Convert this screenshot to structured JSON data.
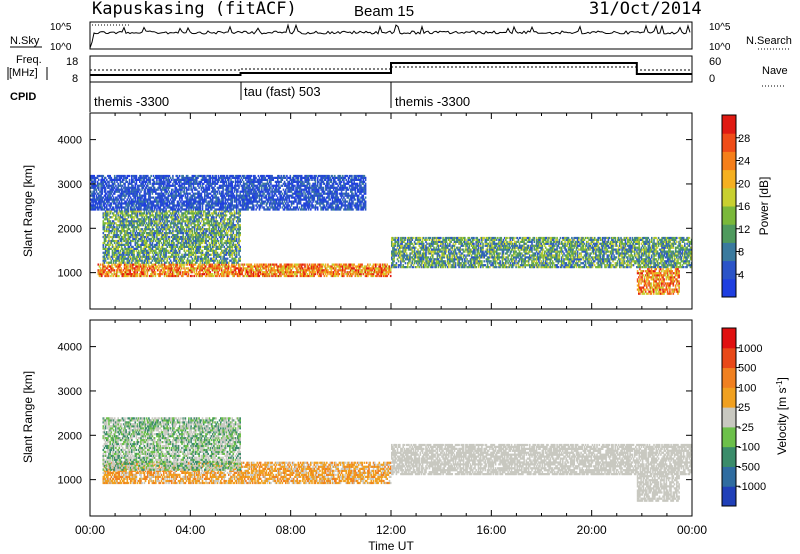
{
  "header": {
    "station": "Kapuskasing (fitACF)",
    "beam": "Beam 15",
    "date": "31/Oct/2014"
  },
  "panels": {
    "nsky": {
      "left_label": "N.Sky",
      "right_label": "N.Search",
      "left_ticks": [
        "10^5",
        "10^0"
      ],
      "right_ticks": [
        "10^5",
        "10^0"
      ]
    },
    "freq": {
      "left_label_1": "Freq.",
      "left_label_2": "[MHz]",
      "left_ticks": [
        "18",
        "8"
      ],
      "right_label": "Nave",
      "right_ticks": [
        "60",
        "0"
      ]
    },
    "cpid": {
      "label": "CPID",
      "segments": [
        {
          "start": 0,
          "end": 6,
          "name": "themis -3300"
        },
        {
          "start": 6,
          "end": 12,
          "name": "tau (fast) 503"
        },
        {
          "start": 12,
          "end": 24,
          "name": "themis -3300"
        }
      ]
    }
  },
  "chart_data": [
    {
      "type": "heatmap",
      "title": "",
      "xlabel": "Time UT",
      "ylabel": "Slant Range [km]",
      "x_ticks": [
        "00:00",
        "04:00",
        "08:00",
        "12:00",
        "16:00",
        "20:00",
        "00:00"
      ],
      "x_range_hours": [
        0,
        24
      ],
      "y_ticks": [
        1000,
        2000,
        3000,
        4000
      ],
      "ylim": [
        180,
        4600
      ],
      "colorbar": {
        "label": "Power [dB]",
        "ticks": [
          4,
          8,
          12,
          16,
          20,
          24,
          28
        ],
        "colors": [
          "#1f3fe0",
          "#2b54c8",
          "#3a7a9e",
          "#4f9a5e",
          "#7ab83a",
          "#c8d030",
          "#f5b020",
          "#f57f1a",
          "#ef4c18",
          "#e01a12"
        ]
      },
      "bands": [
        {
          "t0": 0.3,
          "t1": 12.0,
          "r0": 900,
          "r1": 1200,
          "level": "high"
        },
        {
          "t0": 12.0,
          "t1": 24.0,
          "r0": 1100,
          "r1": 1800,
          "level": "mid"
        },
        {
          "t0": 0.5,
          "t1": 6.0,
          "r0": 1200,
          "r1": 2400,
          "level": "mid"
        },
        {
          "t0": 0.0,
          "t1": 11.0,
          "r0": 2400,
          "r1": 3200,
          "level": "low"
        },
        {
          "t0": 21.8,
          "t1": 23.5,
          "r0": 500,
          "r1": 1100,
          "level": "high"
        }
      ]
    },
    {
      "type": "heatmap",
      "title": "",
      "xlabel": "Time UT",
      "ylabel": "Slant Range [km]",
      "x_ticks": [
        "00:00",
        "04:00",
        "08:00",
        "12:00",
        "16:00",
        "20:00",
        "00:00"
      ],
      "x_range_hours": [
        0,
        24
      ],
      "y_ticks": [
        1000,
        2000,
        3000,
        4000
      ],
      "ylim": [
        180,
        4600
      ],
      "colorbar": {
        "label": "Velocity [m s^-1]",
        "ticks": [
          1000,
          500,
          100,
          25,
          -25,
          -100,
          -500,
          -1000
        ],
        "colors": [
          "#2040b8",
          "#2f6ca0",
          "#3a8c6a",
          "#6cc04a",
          "#c8c8c0",
          "#f0a020",
          "#f08020",
          "#e84818",
          "#e01010"
        ]
      },
      "bands": [
        {
          "t0": 0.5,
          "t1": 12.0,
          "r0": 900,
          "r1": 1400,
          "level": "negative"
        },
        {
          "t0": 12.0,
          "t1": 24.0,
          "r0": 1100,
          "r1": 1800,
          "level": "ground"
        },
        {
          "t0": 0.5,
          "t1": 6.0,
          "r0": 1200,
          "r1": 2400,
          "level": "positive"
        },
        {
          "t0": 21.8,
          "t1": 23.5,
          "r0": 500,
          "r1": 1100,
          "level": "ground"
        }
      ]
    }
  ]
}
